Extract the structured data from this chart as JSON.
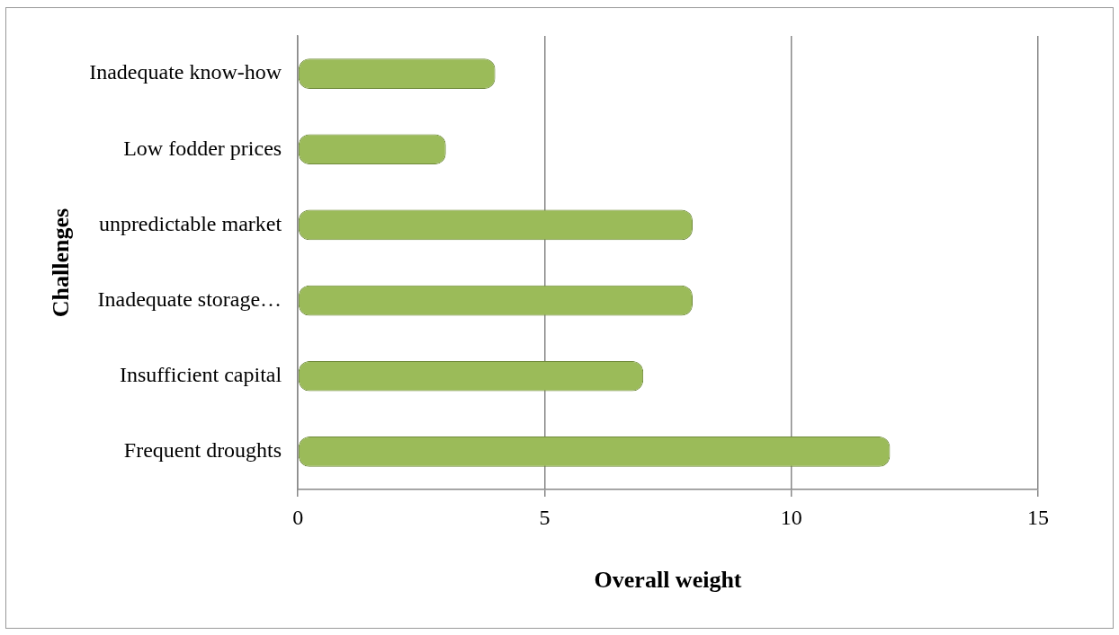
{
  "chart_data": {
    "type": "bar",
    "orientation": "horizontal",
    "xlabel": "Overall weight",
    "ylabel": "Challenges",
    "categories": [
      "Inadequate know-how",
      "Low fodder prices",
      "unpredictable market",
      "Inadequate storage…",
      "Insufficient capital",
      "Frequent droughts"
    ],
    "values": [
      4,
      3,
      8,
      8,
      7,
      12
    ],
    "color": "#9bbb59",
    "xlim": [
      0,
      15
    ],
    "xticks": [
      0,
      5,
      10,
      15
    ],
    "grid": "x",
    "legend": false
  }
}
